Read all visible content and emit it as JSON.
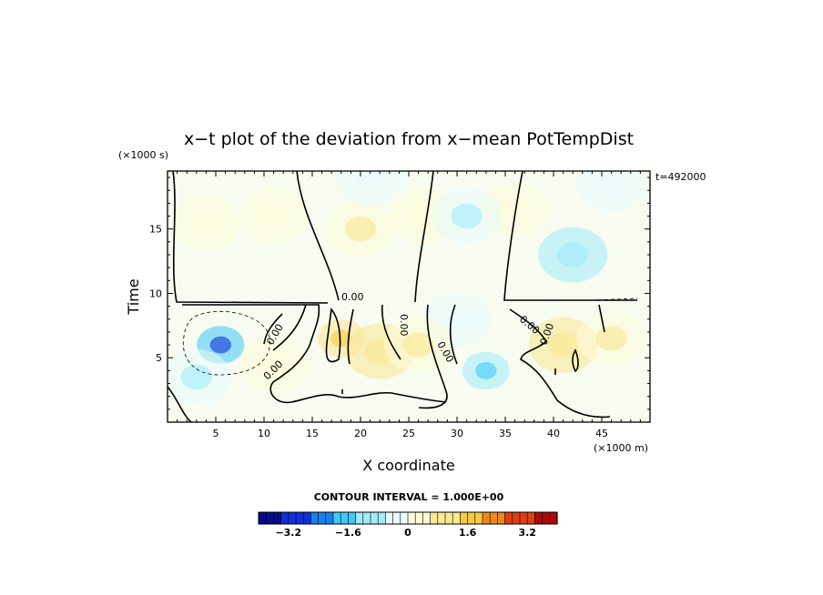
{
  "chart_data": {
    "type": "heatmap",
    "title": "x−t plot of the deviation from x−mean PotTempDist",
    "time_stamp": "t=492000",
    "xlabel": "X coordinate",
    "ylabel": "Time",
    "x_unit": "(×1000 m)",
    "y_unit": "(×1000 s)",
    "xlim": [
      0,
      50
    ],
    "ylim": [
      0,
      19.5
    ],
    "x_ticks": [
      5,
      10,
      15,
      20,
      25,
      30,
      35,
      40,
      45
    ],
    "y_ticks": [
      5,
      10,
      15
    ],
    "x_tick_labels": [
      "5",
      "10",
      "15",
      "20",
      "25",
      "30",
      "35",
      "40",
      "45"
    ],
    "y_tick_labels": [
      "5",
      "10",
      "15"
    ],
    "contour_labels": [
      "0.00",
      "0.00",
      "0.00",
      "0.00",
      "0.00",
      "0.00",
      "0.00"
    ],
    "contour_interval_text": "CONTOUR INTERVAL = 1.000E+00",
    "colorbar": {
      "min": -4,
      "max": 4,
      "levels": 40,
      "tick_values": [
        -3.2,
        -1.6,
        0,
        1.6,
        3.2
      ],
      "tick_labels": [
        "−3.2",
        "−1.6",
        "0",
        "1.6",
        "3.2"
      ],
      "colors": [
        "#0a0a8c",
        "#1030d8",
        "#1a80f0",
        "#40c8f8",
        "#a0ecfc",
        "#e8fcfc",
        "#fefcd8",
        "#fae890",
        "#f8c840",
        "#f08818",
        "#e04010",
        "#b00808"
      ]
    },
    "anomalies": [
      {
        "x": 5.5,
        "t": 6.0,
        "value": -2.0
      },
      {
        "x": 3.0,
        "t": 3.5,
        "value": -0.6
      },
      {
        "x": 33.0,
        "t": 4.0,
        "value": -1.2
      },
      {
        "x": 30.0,
        "t": 8.0,
        "value": -0.4
      },
      {
        "x": 18.0,
        "t": 6.5,
        "value": 1.2
      },
      {
        "x": 22.0,
        "t": 5.5,
        "value": 0.7
      },
      {
        "x": 26.0,
        "t": 6.0,
        "value": 0.5
      },
      {
        "x": 41.0,
        "t": 6.0,
        "value": 0.9
      },
      {
        "x": 46.0,
        "t": 6.5,
        "value": 0.6
      },
      {
        "x": 11.0,
        "t": 4.5,
        "value": 0.4
      },
      {
        "x": 4.0,
        "t": 15.5,
        "value": 0.3
      },
      {
        "x": 11.0,
        "t": 16.0,
        "value": 0.3
      },
      {
        "x": 20.0,
        "t": 15.0,
        "value": 0.5
      },
      {
        "x": 26.5,
        "t": 16.0,
        "value": 0.4
      },
      {
        "x": 36.0,
        "t": 16.5,
        "value": 0.3
      },
      {
        "x": 31.0,
        "t": 16.0,
        "value": -0.5
      },
      {
        "x": 42.0,
        "t": 13.0,
        "value": -0.7
      },
      {
        "x": 46.0,
        "t": 18.5,
        "value": -0.4
      },
      {
        "x": 21.0,
        "t": 19.0,
        "value": -0.3
      }
    ]
  }
}
